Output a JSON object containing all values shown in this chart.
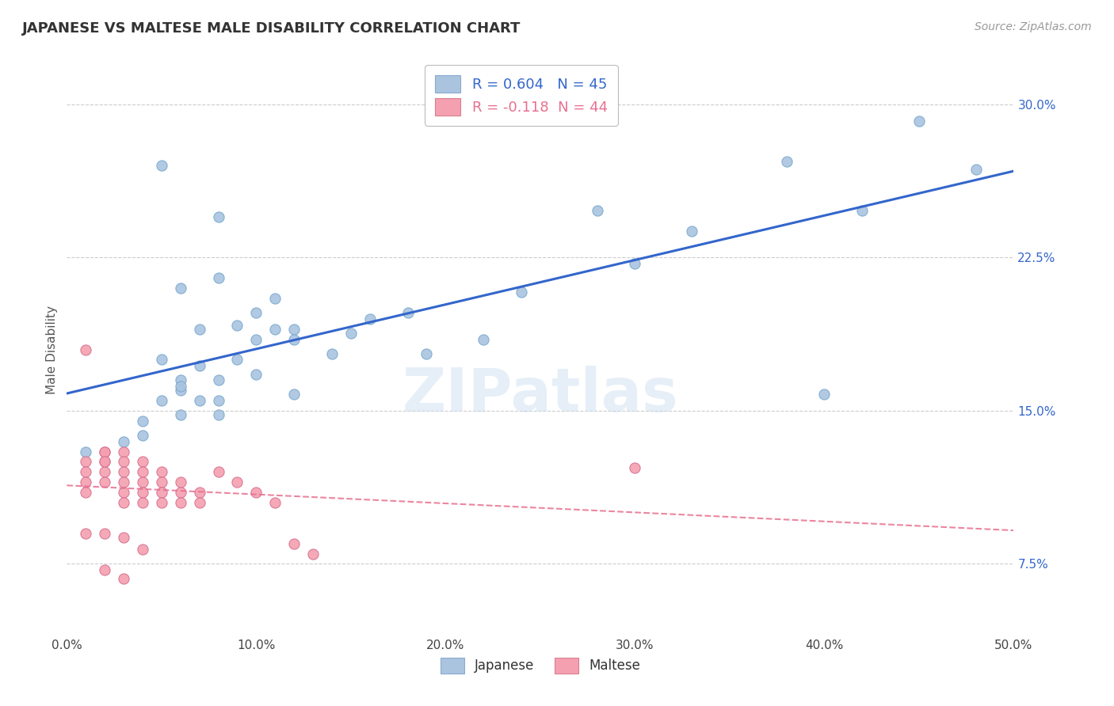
{
  "title": "JAPANESE VS MALTESE MALE DISABILITY CORRELATION CHART",
  "source": "Source: ZipAtlas.com",
  "ylabel": "Male Disability",
  "xlim": [
    0.0,
    0.5
  ],
  "ylim": [
    0.04,
    0.32
  ],
  "ytick_positions": [
    0.075,
    0.15,
    0.225,
    0.3
  ],
  "ytick_labels": [
    "7.5%",
    "15.0%",
    "22.5%",
    "30.0%"
  ],
  "xtick_positions": [
    0.0,
    0.1,
    0.2,
    0.3,
    0.4,
    0.5
  ],
  "xtick_labels": [
    "0.0%",
    "10.0%",
    "20.0%",
    "30.0%",
    "40.0%",
    "50.0%"
  ],
  "grid_color": "#cccccc",
  "background_color": "#ffffff",
  "japanese_color": "#aac4e0",
  "maltese_color": "#f4a0b0",
  "japanese_line_color": "#3366cc",
  "maltese_line_color": "#e87090",
  "R_japanese": 0.604,
  "N_japanese": 45,
  "R_maltese": -0.118,
  "N_maltese": 44,
  "legend_label_japanese": "Japanese",
  "legend_label_maltese": "Maltese",
  "watermark": "ZIPatlas",
  "japanese_x": [
    0.01,
    0.08,
    0.05,
    0.06,
    0.07,
    0.06,
    0.05,
    0.04,
    0.03,
    0.05,
    0.06,
    0.07,
    0.08,
    0.09,
    0.1,
    0.11,
    0.12,
    0.08,
    0.1,
    0.12,
    0.09,
    0.11,
    0.07,
    0.06,
    0.08,
    0.19,
    0.22,
    0.18,
    0.24,
    0.16,
    0.15,
    0.3,
    0.33,
    0.28,
    0.4,
    0.38,
    0.45,
    0.42,
    0.48,
    0.12,
    0.14,
    0.1,
    0.08,
    0.06,
    0.04
  ],
  "japanese_y": [
    0.13,
    0.245,
    0.27,
    0.21,
    0.19,
    0.16,
    0.155,
    0.145,
    0.135,
    0.175,
    0.165,
    0.155,
    0.165,
    0.175,
    0.185,
    0.19,
    0.158,
    0.215,
    0.198,
    0.19,
    0.192,
    0.205,
    0.172,
    0.162,
    0.148,
    0.178,
    0.185,
    0.198,
    0.208,
    0.195,
    0.188,
    0.222,
    0.238,
    0.248,
    0.158,
    0.272,
    0.292,
    0.248,
    0.268,
    0.185,
    0.178,
    0.168,
    0.155,
    0.148,
    0.138
  ],
  "maltese_x": [
    0.01,
    0.02,
    0.02,
    0.02,
    0.02,
    0.02,
    0.01,
    0.01,
    0.01,
    0.01,
    0.02,
    0.03,
    0.03,
    0.03,
    0.03,
    0.03,
    0.03,
    0.04,
    0.04,
    0.04,
    0.04,
    0.04,
    0.05,
    0.05,
    0.05,
    0.05,
    0.06,
    0.06,
    0.06,
    0.07,
    0.07,
    0.08,
    0.09,
    0.1,
    0.11,
    0.12,
    0.13,
    0.01,
    0.02,
    0.03,
    0.04,
    0.3,
    0.02,
    0.03
  ],
  "maltese_y": [
    0.18,
    0.13,
    0.125,
    0.13,
    0.12,
    0.115,
    0.125,
    0.12,
    0.115,
    0.11,
    0.125,
    0.13,
    0.125,
    0.12,
    0.115,
    0.11,
    0.105,
    0.125,
    0.12,
    0.115,
    0.11,
    0.105,
    0.12,
    0.115,
    0.11,
    0.105,
    0.115,
    0.11,
    0.105,
    0.11,
    0.105,
    0.12,
    0.115,
    0.11,
    0.105,
    0.085,
    0.08,
    0.09,
    0.09,
    0.088,
    0.082,
    0.122,
    0.072,
    0.068
  ]
}
